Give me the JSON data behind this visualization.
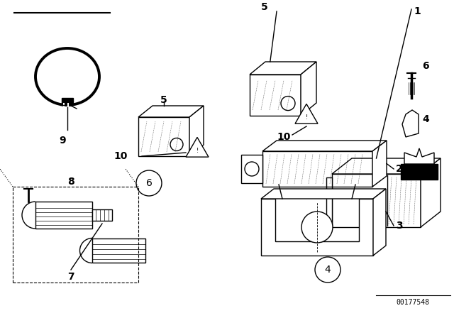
{
  "bg_color": "#ffffff",
  "line_color": "#000000",
  "fig_width": 6.4,
  "fig_height": 4.48,
  "dpi": 100,
  "watermark": "00177548"
}
